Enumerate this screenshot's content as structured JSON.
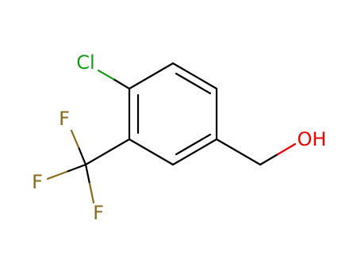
{
  "molecule": {
    "atoms": [
      {
        "label": "Cl"
      },
      {
        "label": "F"
      },
      {
        "label": "F"
      },
      {
        "label": "F"
      },
      {
        "label": "OH"
      }
    ]
  }
}
